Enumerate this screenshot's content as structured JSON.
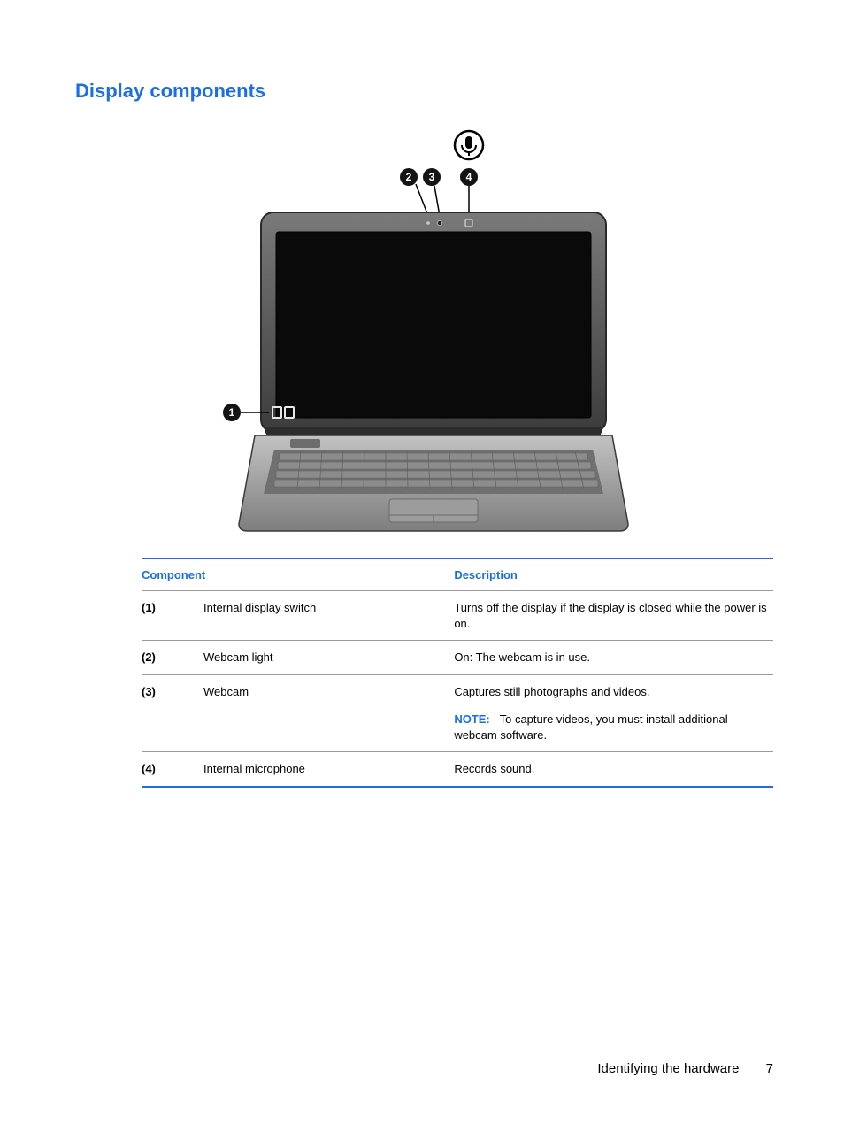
{
  "heading": "Display components",
  "accent_color": "#1a6ee8",
  "rule_color": "#9a9a9a",
  "text_color": "#000000",
  "bg_color": "#ffffff",
  "table": {
    "headers": {
      "component": "Component",
      "description": "Description"
    },
    "rows": [
      {
        "num": "(1)",
        "name": "Internal display switch",
        "desc": "Turns off the display if the display is closed while the power is on.",
        "note": null
      },
      {
        "num": "(2)",
        "name": "Webcam light",
        "desc": "On: The webcam is in use.",
        "note": null
      },
      {
        "num": "(3)",
        "name": "Webcam",
        "desc": "Captures still photographs and videos.",
        "note": {
          "label": "NOTE:",
          "text": "To capture videos, you must install additional webcam software."
        }
      },
      {
        "num": "(4)",
        "name": "Internal microphone",
        "desc": "Records sound.",
        "note": null
      }
    ]
  },
  "illustration": {
    "callouts": [
      "1",
      "2",
      "3",
      "4"
    ],
    "mic_icon": true,
    "laptop": {
      "body_gradient": [
        "#a0a0a0",
        "#6c6c6c",
        "#3a3a3a"
      ],
      "screen_color": "#0b0b0b",
      "bezel_color": "#555555",
      "keyboard_color": "#888888",
      "key_color": "#7a7a7a"
    }
  },
  "footer": {
    "section": "Identifying the hardware",
    "page": "7"
  }
}
